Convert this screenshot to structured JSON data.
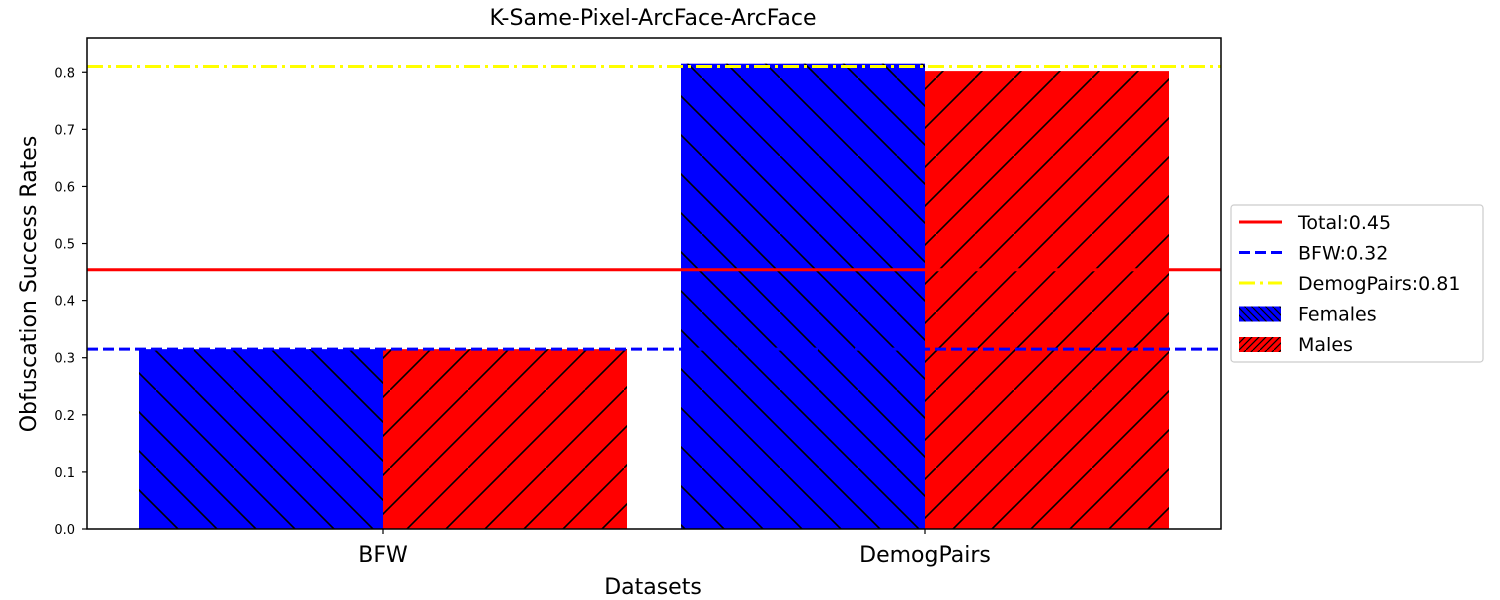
{
  "chart_data": {
    "type": "bar",
    "title": "K-Same-Pixel-ArcFace-ArcFace",
    "xlabel": "Datasets",
    "ylabel": "Obfuscation Success Rates",
    "categories": [
      "BFW",
      "DemogPairs"
    ],
    "series": [
      {
        "name": "Females",
        "values": [
          0.315,
          0.815
        ],
        "color": "#0000ff",
        "hatch": "backslash"
      },
      {
        "name": "Males",
        "values": [
          0.315,
          0.802
        ],
        "color": "#ff0000",
        "hatch": "slash"
      }
    ],
    "reference_lines": [
      {
        "name": "Total:0.45",
        "value": 0.454,
        "color": "#ff0000",
        "style": "solid"
      },
      {
        "name": "BFW:0.32",
        "value": 0.315,
        "color": "#0000ff",
        "style": "dashed"
      },
      {
        "name": "DemogPairs:0.81",
        "value": 0.81,
        "color": "#ffff00",
        "style": "dashdot"
      }
    ],
    "ylim": [
      0,
      0.86
    ],
    "yticks": [
      "0.0",
      "0.1",
      "0.2",
      "0.3",
      "0.4",
      "0.5",
      "0.6",
      "0.7",
      "0.8"
    ],
    "grid": false,
    "legend_position": "right-outside"
  }
}
